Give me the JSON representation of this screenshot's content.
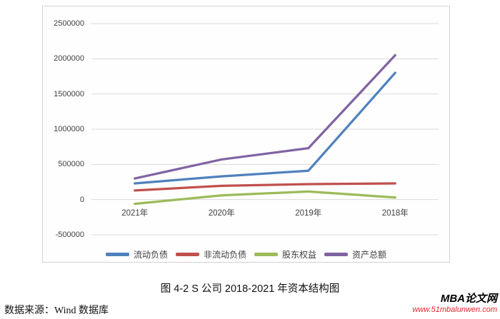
{
  "chart_data": {
    "type": "line",
    "title": "",
    "xlabel": "",
    "ylabel": "",
    "categories": [
      "2021年",
      "2020年",
      "2019年",
      "2018年"
    ],
    "series": [
      {
        "name": "流动负债",
        "color": "#4F81BD",
        "values": [
          230000,
          330000,
          410000,
          1800000
        ]
      },
      {
        "name": "非流动负债",
        "color": "#C0504D",
        "values": [
          130000,
          195000,
          220000,
          230000
        ]
      },
      {
        "name": "股东权益",
        "color": "#9BBB59",
        "values": [
          -60000,
          60000,
          115000,
          30000
        ]
      },
      {
        "name": "资产总额",
        "color": "#8064A2",
        "values": [
          300000,
          570000,
          730000,
          2050000
        ]
      }
    ],
    "ylim": [
      -500000,
      2500000
    ],
    "ytick_step": 500000,
    "ytick_labels": [
      "2500000",
      "2000000",
      "1500000",
      "1000000",
      "500000",
      "0",
      "-500000"
    ],
    "grid": true,
    "legend_position": "bottom",
    "colors": {
      "gridline": "#d9d9d9",
      "axis_text": "#404040",
      "frame_border": "#d2d2d2"
    }
  },
  "caption": "图 4-2 S 公司 2018-2021 年资本结构图",
  "source_note": "数据来源：Wind 数据库",
  "watermark": {
    "site_name": "MBA论文网",
    "site_url": "www.51mbalunwen.com",
    "url_color": "#e8262d"
  }
}
